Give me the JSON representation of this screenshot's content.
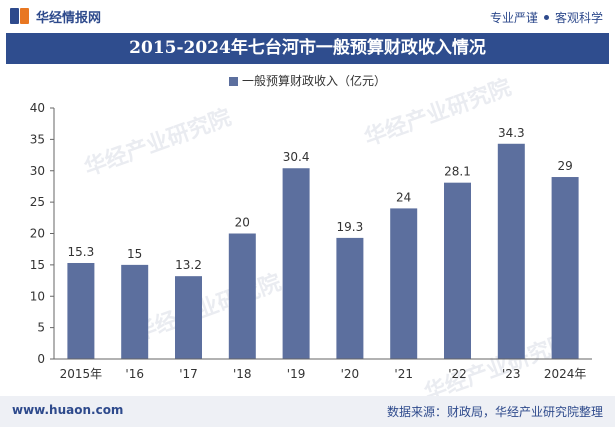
{
  "header": {
    "logo_text": "华经情报网",
    "slogan_left": "专业严谨",
    "slogan_right": "客观科学"
  },
  "title": "2015-2024年七台河市一般预算财政收入情况",
  "footer": {
    "website": "www.huaon.com",
    "source": "数据来源：财政局，华经产业研究院整理"
  },
  "watermark": {
    "text": "华经产业研究院",
    "url": "www.huaon.com"
  },
  "colors": {
    "bar": "#5c6f9e",
    "title_bg": "#2f4d8e",
    "brand_blue": "#2e4a8c",
    "brand_orange": "#e87722"
  },
  "chart_data": {
    "type": "bar",
    "categories": [
      "2015年",
      "'16",
      "'17",
      "'18",
      "'19",
      "'20",
      "'21",
      "'22",
      "'23",
      "2024年"
    ],
    "series": [
      {
        "name": "一般预算财政收入（亿元）",
        "values": [
          15.3,
          15,
          13.2,
          20,
          30.4,
          19.3,
          24,
          28.1,
          34.3,
          29
        ]
      }
    ],
    "value_labels": [
      "15.3",
      "15",
      "13.2",
      "20",
      "30.4",
      "19.3",
      "24",
      "28.1",
      "34.3",
      "29"
    ],
    "yticks": [
      "0",
      "5",
      "10",
      "15",
      "20",
      "25",
      "30",
      "35",
      "40"
    ],
    "ylim": [
      0,
      40
    ],
    "legend_position": "top-center",
    "grid": false
  }
}
